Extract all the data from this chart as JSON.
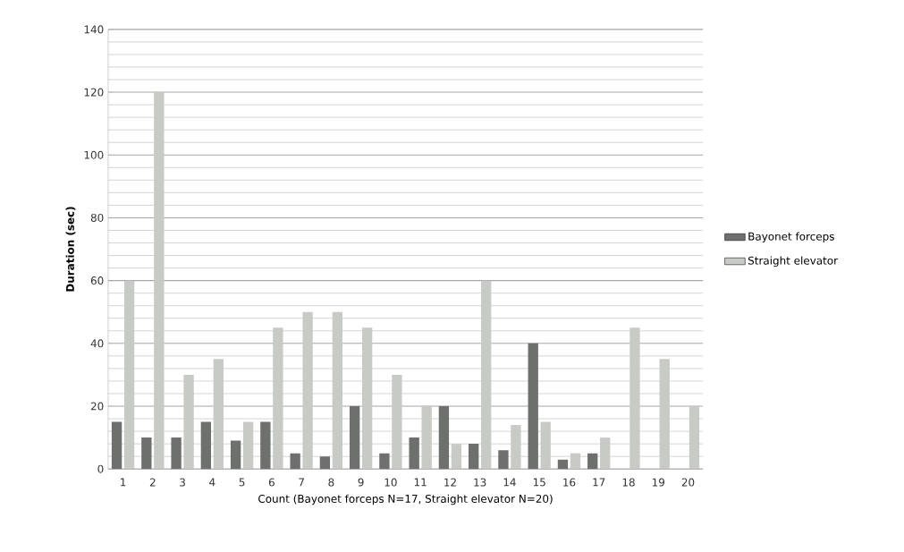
{
  "chart_data": {
    "type": "bar",
    "xlabel": "Count (Bayonet forceps N=17, Straight elevator N=20)",
    "ylabel": "Duration (sec)",
    "categories": [
      "1",
      "2",
      "3",
      "4",
      "5",
      "6",
      "7",
      "8",
      "9",
      "10",
      "11",
      "12",
      "13",
      "14",
      "15",
      "16",
      "17",
      "18",
      "19",
      "20"
    ],
    "series": [
      {
        "name": "Bayonet forceps",
        "color": "#6e706d",
        "values": [
          15,
          10,
          10,
          15,
          9,
          15,
          5,
          4,
          20,
          5,
          10,
          20,
          8,
          6,
          40,
          3,
          5,
          null,
          null,
          null
        ]
      },
      {
        "name": "Straight elevator",
        "color": "#c8cac6",
        "values": [
          60,
          120,
          30,
          35,
          15,
          45,
          50,
          50,
          45,
          30,
          20,
          8,
          60,
          14,
          15,
          5,
          10,
          45,
          35,
          20
        ]
      }
    ],
    "ylim": [
      0,
      140
    ],
    "yticks": [
      0,
      20,
      40,
      60,
      80,
      100,
      120,
      140
    ],
    "grid": "y",
    "legend": "right"
  }
}
